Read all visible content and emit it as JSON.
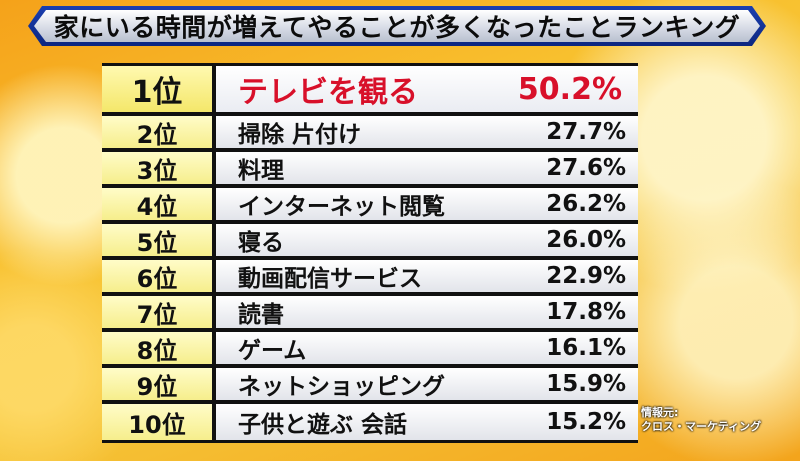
{
  "title": "家にいる時間が増えてやることが多くなったことランキング",
  "ranking": [
    {
      "rank": "1位",
      "item": "テレビを観る",
      "value": "50.2%"
    },
    {
      "rank": "2位",
      "item": "掃除 片付け",
      "value": "27.7%"
    },
    {
      "rank": "3位",
      "item": "料理",
      "value": "27.6%"
    },
    {
      "rank": "4位",
      "item": "インターネット閲覧",
      "value": "26.2%"
    },
    {
      "rank": "5位",
      "item": "寝る",
      "value": "26.0%"
    },
    {
      "rank": "6位",
      "item": "動画配信サービス",
      "value": "22.9%"
    },
    {
      "rank": "7位",
      "item": "読書",
      "value": "17.8%"
    },
    {
      "rank": "8位",
      "item": "ゲーム",
      "value": "16.1%"
    },
    {
      "rank": "9位",
      "item": "ネットショッピング",
      "value": "15.9%"
    },
    {
      "rank": "10位",
      "item": "子供と遊ぶ 会話",
      "value": "15.2%"
    }
  ],
  "source": {
    "label": "情報元:",
    "name": "クロス・マーケティング"
  },
  "colors": {
    "highlight_text": "#d8102a",
    "banner_border": "#1b3fb0",
    "rank_cell": "#f6ee8c"
  }
}
